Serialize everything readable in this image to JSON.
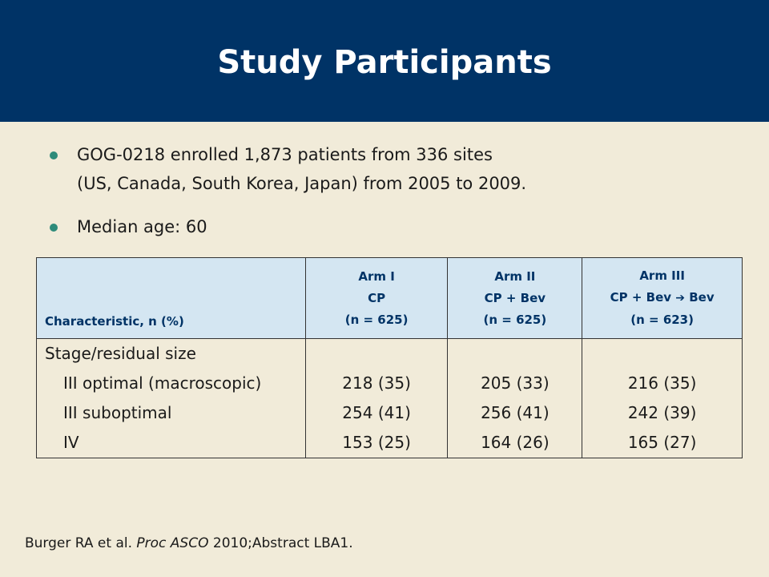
{
  "header": {
    "title": "Study Participants",
    "background_color": "#003366"
  },
  "bullets": [
    {
      "lines": [
        "GOG-0218 enrolled 1,873 patients from 336 sites",
        "(US, Canada, South Korea, Japan) from 2005 to 2009."
      ]
    },
    {
      "lines": [
        "Median age: 60"
      ]
    }
  ],
  "table": {
    "header": {
      "characteristic": "Characteristic, n (%)",
      "columns": [
        {
          "arm": "Arm I",
          "treatment": "CP",
          "n": "(n = 625)"
        },
        {
          "arm": "Arm II",
          "treatment": "CP + Bev",
          "n": "(n = 625)"
        },
        {
          "arm": "Arm III",
          "treatment_a": "CP + Bev",
          "arrow": "➔",
          "treatment_b": "Bev",
          "n": "(n = 623)"
        }
      ]
    },
    "section_label": "Stage/residual size",
    "rows": [
      {
        "label": "III optimal (macroscopic)",
        "values": [
          "218 (35)",
          "205 (33)",
          "216 (35)"
        ]
      },
      {
        "label": "III suboptimal",
        "values": [
          "254 (41)",
          "256 (41)",
          "242 (39)"
        ]
      },
      {
        "label": "IV",
        "values": [
          "153 (25)",
          "164 (26)",
          "165 (27)"
        ]
      }
    ]
  },
  "citation": {
    "authors": "Burger RA et al.",
    "journal": "Proc ASCO",
    "details": "2010;Abstract LBA1."
  },
  "colors": {
    "background": "#f1ebd9",
    "header_bg": "#003366",
    "table_header_bg": "#d4e6f2",
    "bullet": "#2e8b7a"
  }
}
